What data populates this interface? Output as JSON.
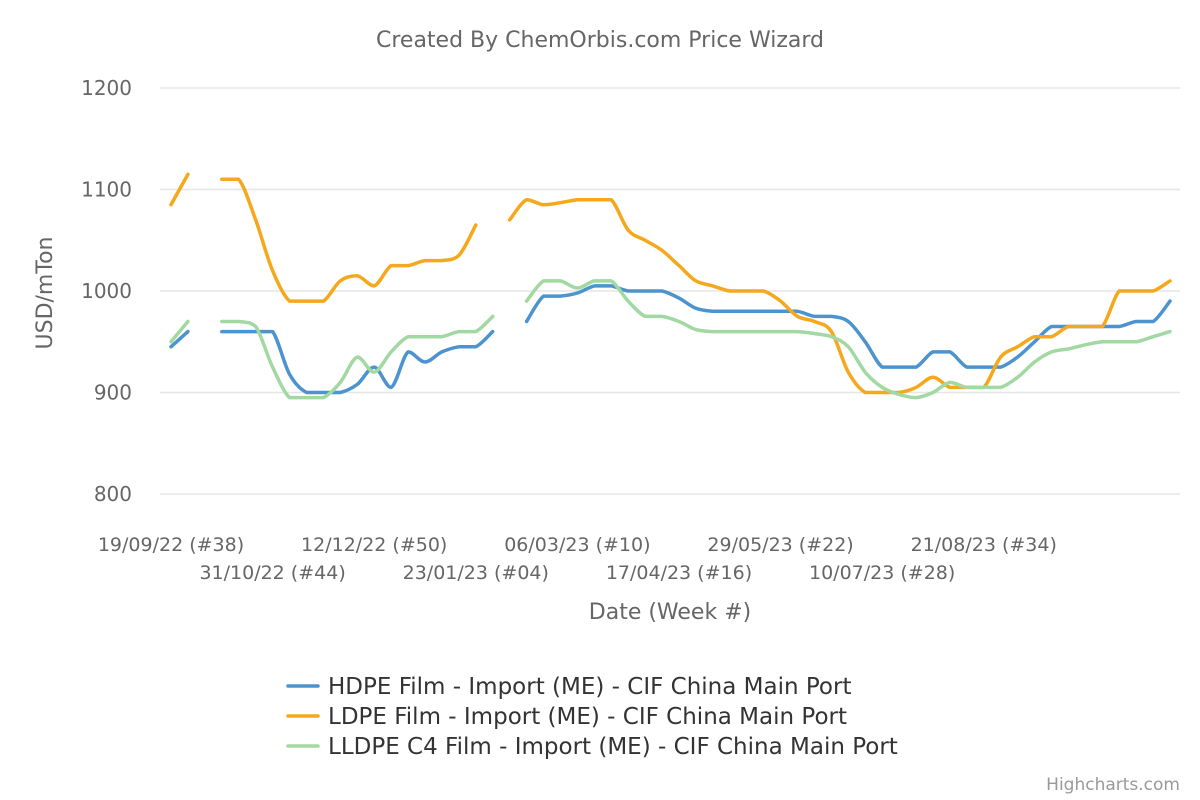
{
  "chart_data": {
    "type": "line",
    "title": "Created By ChemOrbis.com Price Wizard",
    "xlabel": "Date (Week #)",
    "ylabel": "USD/mTon",
    "ylim": [
      800,
      1200
    ],
    "yticks": [
      800,
      900,
      1000,
      1100,
      1200
    ],
    "grid": true,
    "legend_position": "bottom-center",
    "x_tick_labels": [
      {
        "week_index": 0,
        "label": "19/09/22 (#38)",
        "row": 0
      },
      {
        "week_index": 6,
        "label": "31/10/22 (#44)",
        "row": 1
      },
      {
        "week_index": 12,
        "label": "12/12/22 (#50)",
        "row": 0
      },
      {
        "week_index": 18,
        "label": "23/01/23 (#04)",
        "row": 1
      },
      {
        "week_index": 24,
        "label": "06/03/23 (#10)",
        "row": 0
      },
      {
        "week_index": 30,
        "label": "17/04/23 (#16)",
        "row": 1
      },
      {
        "week_index": 36,
        "label": "29/05/23 (#22)",
        "row": 0
      },
      {
        "week_index": 42,
        "label": "10/07/23 (#28)",
        "row": 1
      },
      {
        "week_index": 48,
        "label": "21/08/23 (#34)",
        "row": 0
      }
    ],
    "series": [
      {
        "name": "HDPE Film - Import (ME) - CIF China Main Port",
        "color": "#4b94cf",
        "points": [
          [
            0,
            945
          ],
          [
            1,
            960
          ],
          [
            3,
            960
          ],
          [
            4,
            960
          ],
          [
            5,
            960
          ],
          [
            6,
            960
          ],
          [
            7,
            918
          ],
          [
            8,
            900
          ],
          [
            9,
            900
          ],
          [
            10,
            900
          ],
          [
            11,
            908
          ],
          [
            12,
            925
          ],
          [
            13,
            905
          ],
          [
            14,
            940
          ],
          [
            15,
            930
          ],
          [
            16,
            940
          ],
          [
            17,
            945
          ],
          [
            18,
            945
          ],
          [
            19,
            960
          ],
          [
            21,
            970
          ],
          [
            22,
            995
          ],
          [
            23,
            995
          ],
          [
            24,
            998
          ],
          [
            25,
            1005
          ],
          [
            26,
            1005
          ],
          [
            27,
            1000
          ],
          [
            28,
            1000
          ],
          [
            29,
            1000
          ],
          [
            30,
            993
          ],
          [
            31,
            983
          ],
          [
            32,
            980
          ],
          [
            33,
            980
          ],
          [
            34,
            980
          ],
          [
            35,
            980
          ],
          [
            36,
            980
          ],
          [
            37,
            980
          ],
          [
            38,
            975
          ],
          [
            39,
            975
          ],
          [
            40,
            970
          ],
          [
            41,
            950
          ],
          [
            42,
            925
          ],
          [
            43,
            925
          ],
          [
            44,
            925
          ],
          [
            45,
            940
          ],
          [
            46,
            940
          ],
          [
            47,
            925
          ],
          [
            48,
            925
          ],
          [
            49,
            925
          ],
          [
            50,
            935
          ],
          [
            51,
            950
          ],
          [
            52,
            965
          ],
          [
            53,
            965
          ],
          [
            54,
            965
          ],
          [
            55,
            965
          ],
          [
            56,
            965
          ],
          [
            57,
            970
          ],
          [
            58,
            970
          ],
          [
            59,
            990
          ]
        ]
      },
      {
        "name": "LDPE Film - Import (ME) - CIF China Main Port",
        "color": "#f5a81b",
        "points": [
          [
            0,
            1085
          ],
          [
            1,
            1115
          ],
          [
            3,
            1110
          ],
          [
            4,
            1110
          ],
          [
            5,
            1070
          ],
          [
            6,
            1020
          ],
          [
            7,
            990
          ],
          [
            8,
            990
          ],
          [
            9,
            990
          ],
          [
            10,
            1010
          ],
          [
            11,
            1015
          ],
          [
            12,
            1005
          ],
          [
            13,
            1025
          ],
          [
            14,
            1025
          ],
          [
            15,
            1030
          ],
          [
            16,
            1030
          ],
          [
            17,
            1035
          ],
          [
            18,
            1065
          ],
          [
            20,
            1070
          ],
          [
            21,
            1090
          ],
          [
            22,
            1085
          ],
          [
            23,
            1087
          ],
          [
            24,
            1090
          ],
          [
            25,
            1090
          ],
          [
            26,
            1090
          ],
          [
            27,
            1060
          ],
          [
            28,
            1050
          ],
          [
            29,
            1040
          ],
          [
            30,
            1025
          ],
          [
            31,
            1010
          ],
          [
            32,
            1005
          ],
          [
            33,
            1000
          ],
          [
            34,
            1000
          ],
          [
            35,
            1000
          ],
          [
            36,
            990
          ],
          [
            37,
            975
          ],
          [
            38,
            970
          ],
          [
            39,
            960
          ],
          [
            40,
            920
          ],
          [
            41,
            900
          ],
          [
            42,
            900
          ],
          [
            43,
            900
          ],
          [
            44,
            905
          ],
          [
            45,
            915
          ],
          [
            46,
            905
          ],
          [
            47,
            905
          ],
          [
            48,
            905
          ],
          [
            49,
            935
          ],
          [
            50,
            945
          ],
          [
            51,
            955
          ],
          [
            52,
            955
          ],
          [
            53,
            965
          ],
          [
            54,
            965
          ],
          [
            55,
            965
          ],
          [
            56,
            1000
          ],
          [
            57,
            1000
          ],
          [
            58,
            1000
          ],
          [
            59,
            1010
          ]
        ]
      },
      {
        "name": "LLDPE C4 Film - Import (ME) - CIF China Main Port",
        "color": "#a2d8a2",
        "points": [
          [
            0,
            950
          ],
          [
            1,
            970
          ],
          [
            3,
            970
          ],
          [
            4,
            970
          ],
          [
            5,
            965
          ],
          [
            6,
            925
          ],
          [
            7,
            895
          ],
          [
            8,
            895
          ],
          [
            9,
            895
          ],
          [
            10,
            910
          ],
          [
            11,
            935
          ],
          [
            12,
            920
          ],
          [
            13,
            940
          ],
          [
            14,
            955
          ],
          [
            15,
            955
          ],
          [
            16,
            955
          ],
          [
            17,
            960
          ],
          [
            18,
            960
          ],
          [
            19,
            975
          ],
          [
            21,
            990
          ],
          [
            22,
            1010
          ],
          [
            23,
            1010
          ],
          [
            24,
            1003
          ],
          [
            25,
            1010
          ],
          [
            26,
            1010
          ],
          [
            27,
            990
          ],
          [
            28,
            975
          ],
          [
            29,
            975
          ],
          [
            30,
            970
          ],
          [
            31,
            962
          ],
          [
            32,
            960
          ],
          [
            33,
            960
          ],
          [
            34,
            960
          ],
          [
            35,
            960
          ],
          [
            36,
            960
          ],
          [
            37,
            960
          ],
          [
            38,
            958
          ],
          [
            39,
            955
          ],
          [
            40,
            945
          ],
          [
            41,
            920
          ],
          [
            42,
            905
          ],
          [
            43,
            898
          ],
          [
            44,
            895
          ],
          [
            45,
            900
          ],
          [
            46,
            910
          ],
          [
            47,
            905
          ],
          [
            48,
            905
          ],
          [
            49,
            905
          ],
          [
            50,
            915
          ],
          [
            51,
            930
          ],
          [
            52,
            940
          ],
          [
            53,
            943
          ],
          [
            54,
            947
          ],
          [
            55,
            950
          ],
          [
            56,
            950
          ],
          [
            57,
            950
          ],
          [
            58,
            955
          ],
          [
            59,
            960
          ]
        ]
      }
    ]
  },
  "credit": "Highcharts.com"
}
